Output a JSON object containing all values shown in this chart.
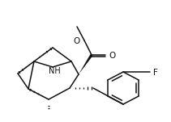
{
  "bg": "#ffffff",
  "lc": "#111111",
  "lw": 1.1,
  "figsize": [
    2.11,
    1.51
  ],
  "dpi": 100,
  "NH_label": "NH",
  "O_label": "O",
  "F_label": "F"
}
